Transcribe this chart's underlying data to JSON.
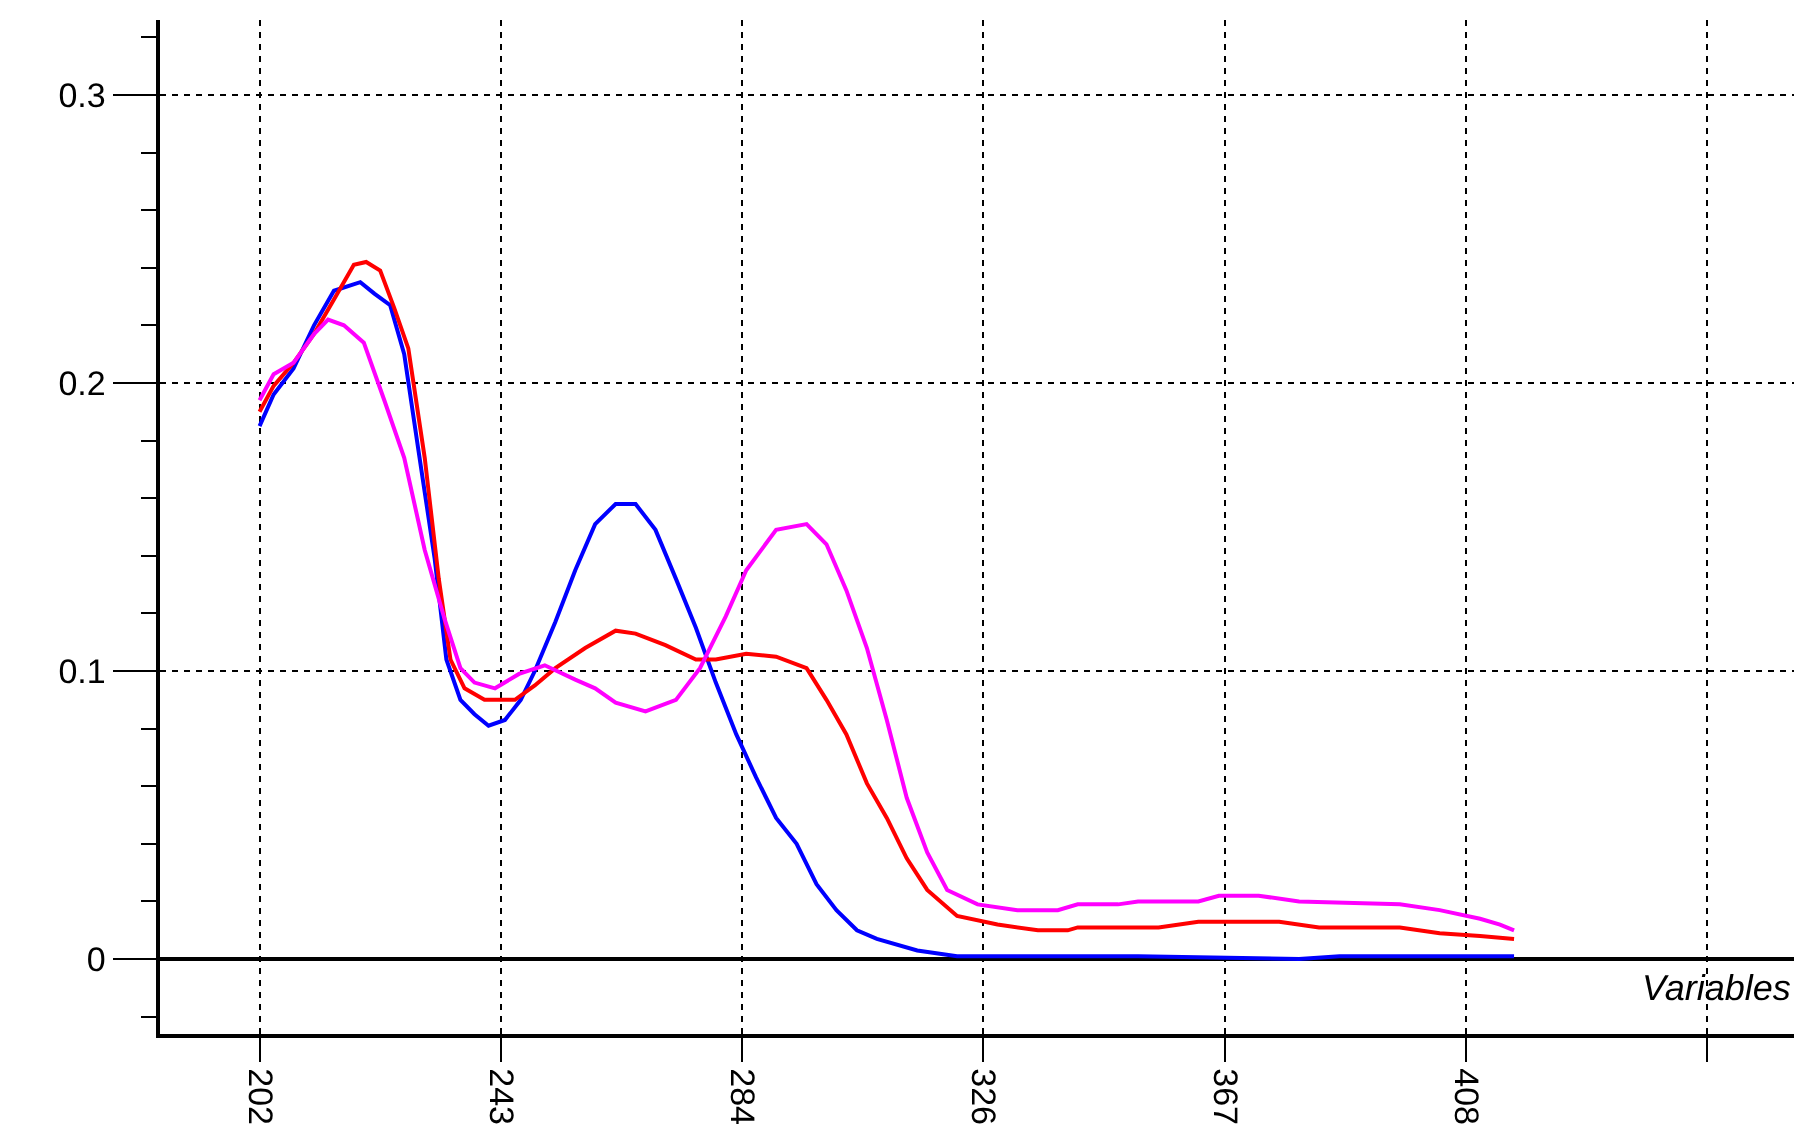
{
  "chart_data": {
    "type": "line",
    "xlabel": "Variables",
    "xlim": [
      185,
      464
    ],
    "ylim": [
      -0.026,
      0.326
    ],
    "xticks": [
      202,
      {
        "value": 243.2,
        "label": "243"
      },
      {
        "value": 284.4,
        "label": "284"
      },
      {
        "value": 325.6,
        "label": "326"
      },
      {
        "value": 366.8,
        "label": "367"
      },
      408,
      {
        "value": 449.2,
        "label": null
      }
    ],
    "yticks": [
      0,
      0.1,
      0.2,
      0.3
    ],
    "grid": true,
    "marker": "none",
    "line_style": "solid",
    "series": [
      {
        "color": "#0000ff",
        "x": [
          202,
          204.4,
          207.8,
          211.3,
          214.7,
          219.2,
          221.6,
          224.3,
          226.7,
          229.1,
          231.9,
          233.9,
          236.3,
          238.7,
          241.1,
          243.9,
          246.6,
          249.0,
          252.5,
          255.9,
          259.3,
          262.8,
          266.2,
          269.6,
          273.1,
          276.5,
          279.9,
          283.4,
          286.8,
          290.2,
          293.7,
          297.1,
          300.5,
          304.0,
          307.4,
          314.3,
          321.1,
          338.3,
          352.0,
          379.5,
          386.4,
          416.2
        ],
        "values": [
          0.185,
          0.196,
          0.205,
          0.22,
          0.232,
          0.235,
          0.231,
          0.227,
          0.21,
          0.177,
          0.139,
          0.104,
          0.09,
          0.085,
          0.081,
          0.083,
          0.09,
          0.1,
          0.117,
          0.135,
          0.151,
          0.158,
          0.158,
          0.149,
          0.132,
          0.115,
          0.096,
          0.078,
          0.063,
          0.049,
          0.04,
          0.026,
          0.017,
          0.01,
          0.007,
          0.003,
          0.001,
          0.001,
          0.001,
          0,
          0.001,
          0.001
        ]
      },
      {
        "color": "#ff0000",
        "x": [
          202,
          204.4,
          207.8,
          211.3,
          214.7,
          218.1,
          220.2,
          222.6,
          225.0,
          227.4,
          230.2,
          232.6,
          234.6,
          237.0,
          240.4,
          245.6,
          249.0,
          252.5,
          257.6,
          262.8,
          266.2,
          271.3,
          276.5,
          279.9,
          285.1,
          290.2,
          295.4,
          298.8,
          302.2,
          305.7,
          309.1,
          312.5,
          316.0,
          321.1,
          328.0,
          334.9,
          340.0,
          341.7,
          355.5,
          362.3,
          376.1,
          382.9,
          396.7,
          403.5,
          410.4,
          416.2
        ],
        "values": [
          0.19,
          0.199,
          0.207,
          0.217,
          0.229,
          0.241,
          0.242,
          0.239,
          0.226,
          0.212,
          0.174,
          0.132,
          0.104,
          0.094,
          0.09,
          0.09,
          0.095,
          0.101,
          0.108,
          0.114,
          0.113,
          0.109,
          0.104,
          0.104,
          0.106,
          0.105,
          0.101,
          0.09,
          0.078,
          0.061,
          0.049,
          0.035,
          0.024,
          0.015,
          0.012,
          0.01,
          0.01,
          0.011,
          0.011,
          0.013,
          0.013,
          0.011,
          0.011,
          0.009,
          0.008,
          0.007
        ]
      },
      {
        "color": "#ff00ff",
        "x": [
          202,
          204.4,
          207.8,
          211.3,
          213.7,
          216.4,
          219.8,
          223.3,
          226.7,
          230.2,
          233.6,
          236.3,
          238.7,
          242.2,
          246.3,
          250.7,
          255.9,
          259.3,
          262.8,
          267.9,
          273.1,
          277.2,
          281.6,
          285.1,
          290.2,
          295.4,
          298.8,
          302.2,
          305.7,
          309.1,
          312.5,
          316.0,
          319.4,
          324.6,
          331.4,
          338.3,
          341.7,
          348.6,
          352.0,
          362.3,
          365.8,
          372.6,
          379.5,
          396.7,
          403.5,
          410.4,
          413.8,
          416.2
        ],
        "values": [
          0.194,
          0.203,
          0.207,
          0.217,
          0.222,
          0.22,
          0.214,
          0.194,
          0.174,
          0.142,
          0.118,
          0.101,
          0.096,
          0.094,
          0.099,
          0.102,
          0.097,
          0.094,
          0.089,
          0.086,
          0.09,
          0.101,
          0.119,
          0.135,
          0.149,
          0.151,
          0.144,
          0.128,
          0.108,
          0.083,
          0.056,
          0.037,
          0.024,
          0.019,
          0.017,
          0.017,
          0.019,
          0.019,
          0.02,
          0.02,
          0.022,
          0.022,
          0.02,
          0.019,
          0.017,
          0.014,
          0.012,
          0.01
        ]
      }
    ]
  }
}
